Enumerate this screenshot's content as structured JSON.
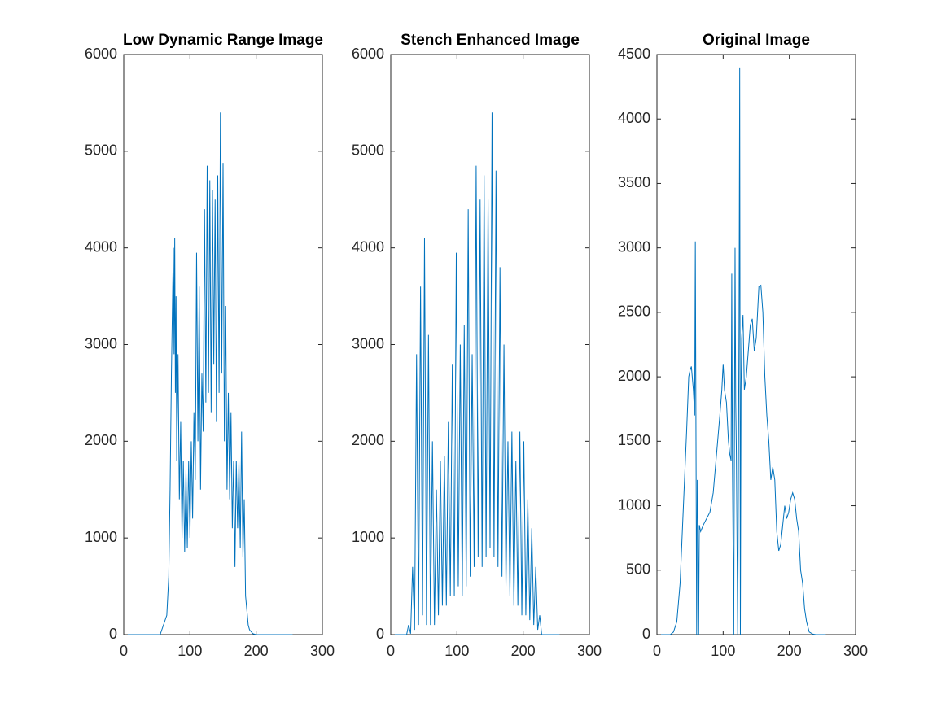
{
  "chart_data": [
    {
      "type": "line",
      "title": "Low Dynamic Range Image",
      "color": "#0072bd",
      "xlim": [
        0,
        300
      ],
      "xticks": [
        0,
        100,
        200,
        300
      ],
      "ylim": [
        0,
        6000
      ],
      "yticks": [
        0,
        1000,
        2000,
        3000,
        4000,
        5000,
        6000
      ],
      "x": [
        0,
        55,
        60,
        65,
        68,
        70,
        72,
        74,
        75,
        76,
        77,
        78,
        79,
        80,
        82,
        84,
        86,
        88,
        90,
        92,
        94,
        96,
        98,
        100,
        102,
        104,
        106,
        108,
        110,
        112,
        114,
        116,
        118,
        120,
        122,
        124,
        126,
        128,
        130,
        132,
        134,
        136,
        138,
        140,
        142,
        144,
        146,
        148,
        150,
        152,
        154,
        156,
        158,
        160,
        162,
        164,
        166,
        168,
        170,
        172,
        174,
        176,
        178,
        180,
        182,
        184,
        186,
        188,
        190,
        195,
        200,
        255
      ],
      "values": [
        0,
        0,
        100,
        200,
        600,
        1500,
        2700,
        3600,
        4000,
        2900,
        4100,
        2500,
        3500,
        1800,
        2900,
        1400,
        2200,
        1000,
        1800,
        850,
        1700,
        900,
        1800,
        1000,
        2000,
        1200,
        2300,
        1600,
        3950,
        2000,
        3600,
        1500,
        2700,
        2100,
        4400,
        2400,
        4850,
        2500,
        4700,
        2300,
        4600,
        2800,
        4500,
        2200,
        4750,
        2500,
        5400,
        2700,
        4880,
        2000,
        3400,
        1500,
        2500,
        1400,
        2300,
        1100,
        1800,
        700,
        1800,
        1100,
        1800,
        900,
        2100,
        800,
        1400,
        400,
        250,
        100,
        50,
        10,
        0,
        0
      ]
    },
    {
      "type": "line",
      "title": "Stench Enhanced Image",
      "color": "#0072bd",
      "xlim": [
        0,
        300
      ],
      "xticks": [
        0,
        100,
        200,
        300
      ],
      "ylim": [
        0,
        6000
      ],
      "yticks": [
        0,
        1000,
        2000,
        3000,
        4000,
        5000,
        6000
      ],
      "x": [
        0,
        24,
        27,
        30,
        33,
        36,
        39,
        42,
        45,
        48,
        51,
        54,
        57,
        60,
        63,
        66,
        69,
        72,
        75,
        78,
        81,
        84,
        87,
        90,
        93,
        96,
        99,
        102,
        105,
        108,
        111,
        114,
        117,
        120,
        123,
        126,
        129,
        132,
        135,
        138,
        141,
        144,
        147,
        150,
        153,
        156,
        159,
        162,
        165,
        168,
        171,
        174,
        177,
        180,
        183,
        186,
        189,
        192,
        195,
        198,
        201,
        204,
        207,
        210,
        213,
        216,
        219,
        222,
        225,
        228,
        255
      ],
      "values": [
        0,
        0,
        100,
        10,
        700,
        50,
        2900,
        100,
        3600,
        200,
        4100,
        100,
        3100,
        100,
        2000,
        100,
        1500,
        200,
        1800,
        300,
        1850,
        300,
        2200,
        400,
        2800,
        400,
        3950,
        500,
        3000,
        400,
        3200,
        500,
        4400,
        600,
        2900,
        700,
        4850,
        800,
        4500,
        700,
        4750,
        800,
        4500,
        900,
        5400,
        800,
        4800,
        700,
        3800,
        600,
        3000,
        500,
        2000,
        400,
        2100,
        300,
        1800,
        300,
        2100,
        200,
        2000,
        200,
        1400,
        150,
        1100,
        100,
        700,
        50,
        200,
        0,
        0
      ]
    },
    {
      "type": "line",
      "title": "Original Image",
      "color": "#0072bd",
      "xlim": [
        0,
        300
      ],
      "xticks": [
        0,
        100,
        200,
        300
      ],
      "ylim": [
        0,
        4500
      ],
      "yticks": [
        0,
        500,
        1000,
        1500,
        2000,
        2500,
        3000,
        3500,
        4000,
        4500
      ],
      "x": [
        0,
        20,
        25,
        30,
        35,
        40,
        45,
        48,
        50,
        52,
        55,
        57,
        58,
        59,
        60,
        61,
        62,
        63,
        64,
        66,
        70,
        75,
        80,
        85,
        90,
        95,
        98,
        100,
        102,
        105,
        108,
        110,
        112,
        113,
        114,
        116,
        118,
        119,
        120,
        122,
        124,
        125,
        126,
        127,
        128,
        130,
        132,
        135,
        138,
        141,
        144,
        147,
        150,
        154,
        157,
        160,
        163,
        166,
        169,
        172,
        175,
        178,
        181,
        184,
        187,
        190,
        193,
        196,
        199,
        202,
        205,
        208,
        211,
        214,
        217,
        220,
        223,
        226,
        230,
        235,
        240,
        255
      ],
      "values": [
        0,
        0,
        20,
        100,
        400,
        1000,
        1600,
        2000,
        2050,
        2080,
        1900,
        1700,
        3050,
        1500,
        0,
        1200,
        900,
        0,
        850,
        800,
        850,
        900,
        950,
        1100,
        1400,
        1700,
        1900,
        2100,
        1900,
        1800,
        1500,
        1400,
        1350,
        2800,
        1350,
        0,
        3000,
        1800,
        1400,
        0,
        2400,
        4400,
        0,
        1900,
        2300,
        2480,
        1900,
        2000,
        2200,
        2400,
        2450,
        2200,
        2300,
        2700,
        2710,
        2500,
        2000,
        1700,
        1500,
        1200,
        1300,
        1200,
        800,
        650,
        700,
        850,
        1000,
        900,
        950,
        1050,
        1100,
        1050,
        900,
        800,
        500,
        400,
        200,
        100,
        20,
        5,
        0,
        0
      ]
    }
  ]
}
